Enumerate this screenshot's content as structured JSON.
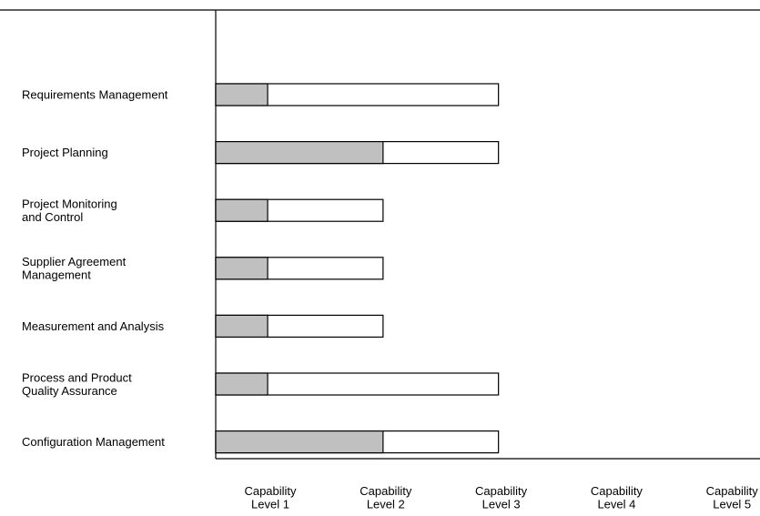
{
  "chart_data": {
    "type": "bar",
    "categories": [
      [
        "Requirements Management"
      ],
      [
        "Project Planning"
      ],
      [
        "Project Monitoring",
        "and Control"
      ],
      [
        "Supplier Agreement",
        "Management"
      ],
      [
        "Measurement and Analysis"
      ],
      [
        "Process and Product",
        "Quality Assurance"
      ],
      [
        "Configuration Management"
      ]
    ],
    "x_ticks": [
      [
        "Capability",
        "Level 1"
      ],
      [
        "Capability",
        "Level 2"
      ],
      [
        "Capability",
        "Level 3"
      ],
      [
        "Capability",
        "Level 4"
      ],
      [
        "Capability",
        "Level 5"
      ]
    ],
    "series": [
      {
        "fill": "#c0c0c0",
        "values": [
          1,
          2,
          1,
          1,
          1,
          1,
          2
        ]
      },
      {
        "fill": "#ffffff",
        "values": [
          3,
          3,
          2,
          2,
          2,
          3,
          3
        ]
      }
    ],
    "xlim": [
      0.55,
      5.55
    ],
    "grid": false,
    "legend": "none",
    "colors": {
      "bar_stroke": "#000000",
      "axis": "#000000"
    }
  }
}
